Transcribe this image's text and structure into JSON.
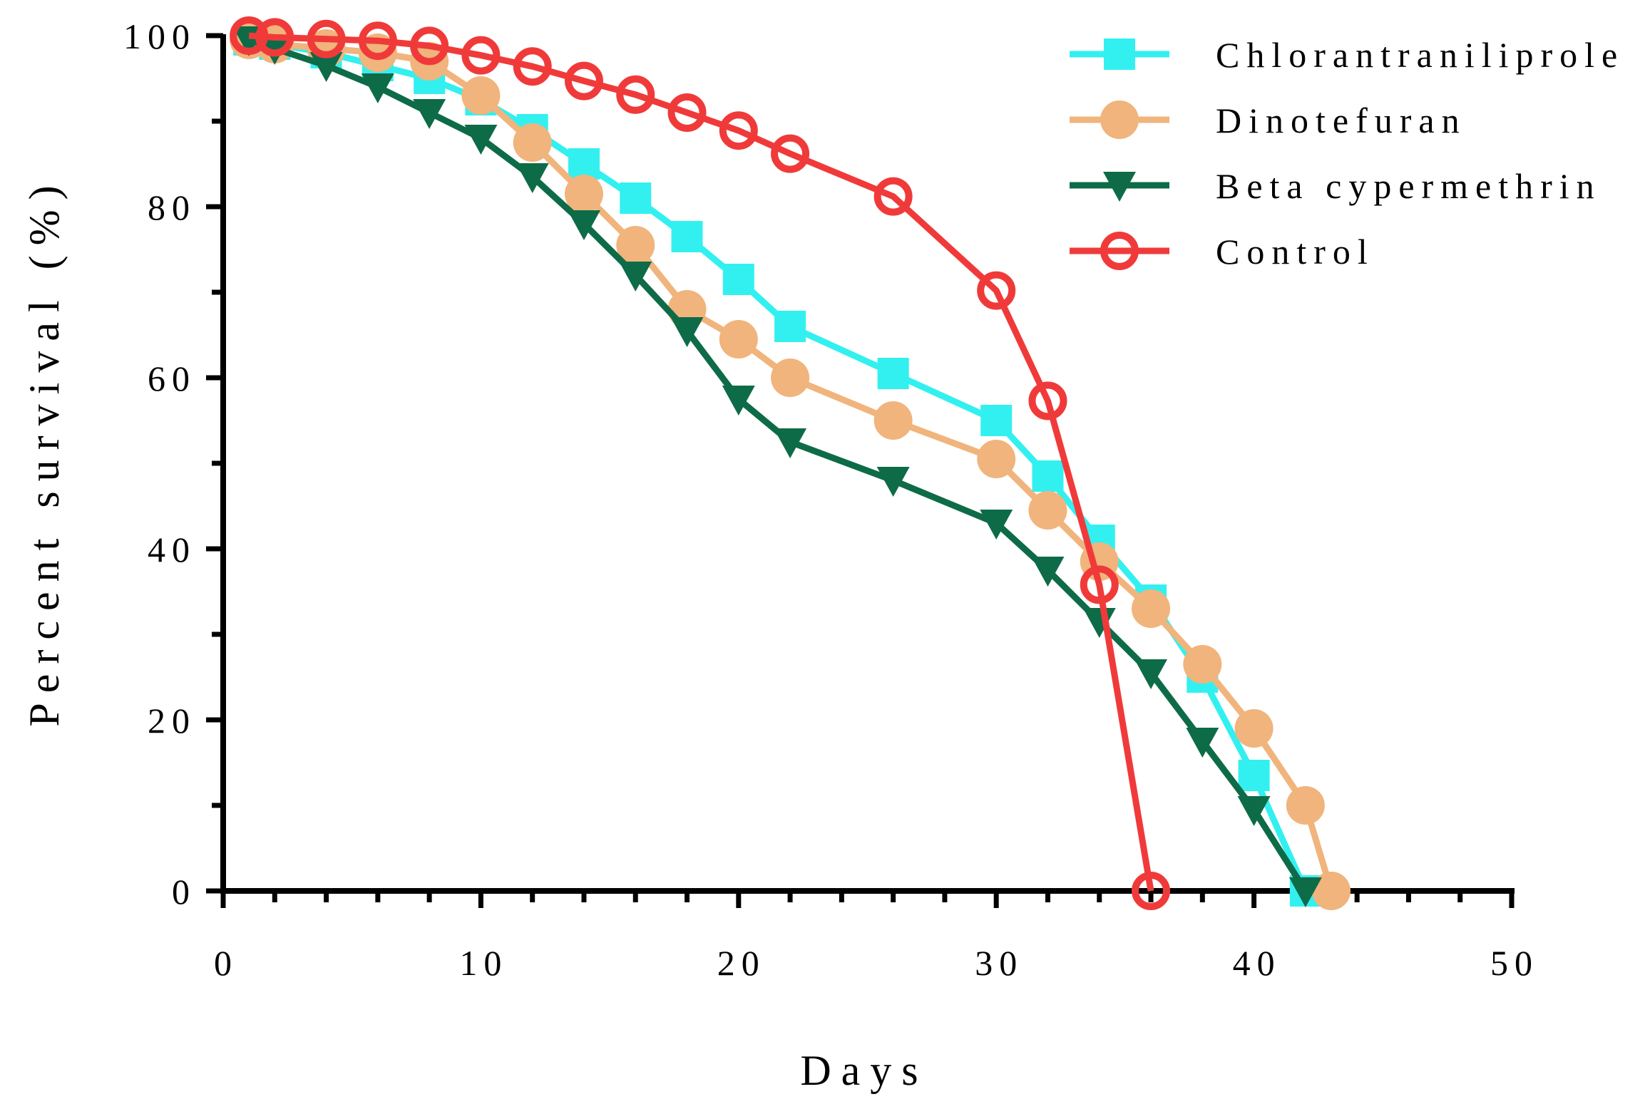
{
  "chart_data": {
    "type": "line",
    "xlabel": "Days",
    "ylabel": "Percent survival (%)",
    "xlim": [
      0,
      50
    ],
    "ylim": [
      0,
      100
    ],
    "x_ticks": [
      0,
      10,
      20,
      30,
      40,
      50
    ],
    "y_ticks": [
      0,
      20,
      40,
      60,
      80,
      100
    ],
    "x_tick_labels": [
      "0",
      "10",
      "20",
      "30",
      "40",
      "50"
    ],
    "y_tick_labels": [
      "0",
      "20",
      "40",
      "60",
      "80",
      "100"
    ],
    "grid": false,
    "legend_position": "top-right",
    "series": [
      {
        "name": "Chlorantraniliprole",
        "color": "#33F0F0",
        "marker": "square",
        "x": [
          1,
          2,
          4,
          6,
          8,
          10,
          12,
          14,
          16,
          18,
          20,
          22,
          26,
          30,
          32,
          34,
          36,
          38,
          40,
          42
        ],
        "y": [
          99.5,
          99,
          98,
          96.5,
          95,
          92.5,
          89,
          85,
          81,
          76.5,
          71.5,
          66,
          60.5,
          55,
          48.5,
          41,
          34,
          25,
          13.5,
          0
        ]
      },
      {
        "name": "Dinotefuran",
        "color": "#F0B47C",
        "marker": "circle",
        "x": [
          1,
          2,
          4,
          6,
          8,
          10,
          12,
          14,
          16,
          18,
          20,
          22,
          26,
          30,
          32,
          34,
          36,
          38,
          40,
          42,
          43
        ],
        "y": [
          99.5,
          99,
          98.5,
          98,
          97,
          93,
          87.5,
          81.5,
          75.5,
          68,
          64.5,
          60,
          55,
          50.5,
          44.5,
          38.5,
          33,
          26.5,
          19,
          10,
          0
        ]
      },
      {
        "name": "Beta cypermethrin",
        "color": "#0E6B48",
        "marker": "triangle-down",
        "x": [
          1,
          2,
          4,
          6,
          8,
          10,
          12,
          14,
          16,
          18,
          20,
          22,
          26,
          30,
          32,
          34,
          36,
          38,
          40,
          42
        ],
        "y": [
          99.5,
          98.5,
          96.5,
          94,
          91,
          88,
          83.5,
          78,
          72,
          65.5,
          57.5,
          52.5,
          48,
          43,
          37.5,
          31.5,
          25.5,
          17.5,
          9.5,
          0
        ]
      },
      {
        "name": "Control",
        "color": "#F03A3A",
        "marker": "circle-open",
        "x": [
          1,
          2,
          4,
          6,
          8,
          10,
          12,
          14,
          16,
          18,
          20,
          22,
          26,
          30,
          32,
          34,
          36
        ],
        "y": [
          100,
          99.8,
          99.6,
          99.4,
          98.8,
          97.7,
          96.4,
          94.7,
          93.1,
          91,
          88.9,
          86.2,
          81.2,
          70.2,
          57.3,
          35.8,
          0
        ]
      }
    ]
  }
}
